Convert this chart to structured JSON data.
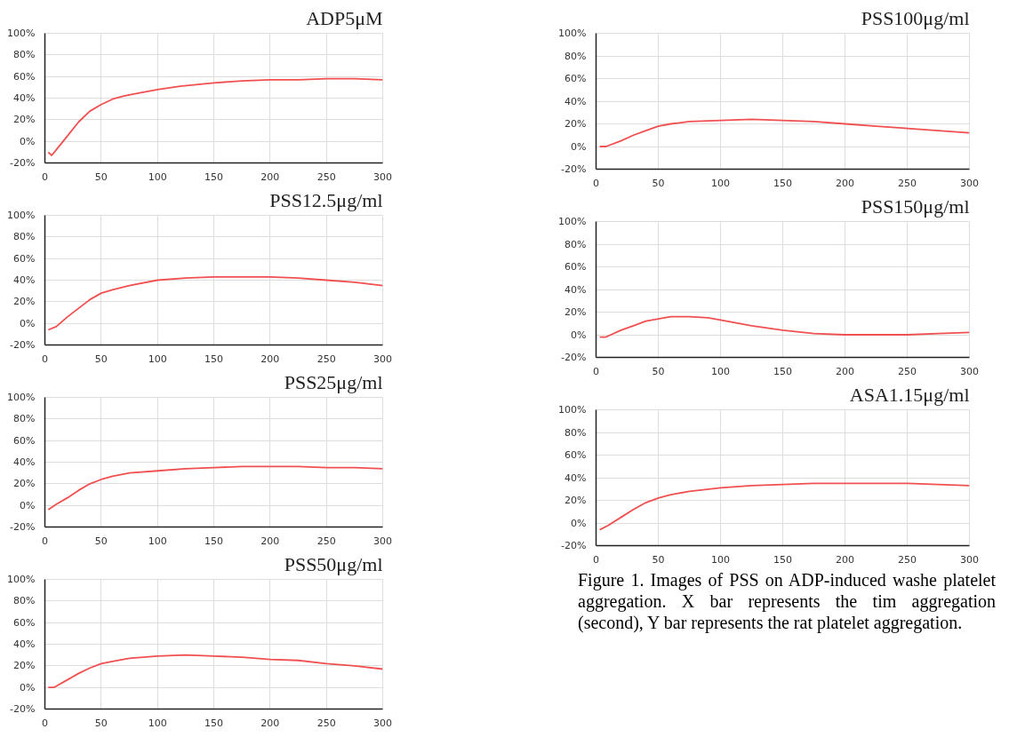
{
  "chart_data": [
    {
      "type": "line",
      "title": "ADP5μM",
      "x": [
        3,
        6,
        10,
        20,
        30,
        40,
        50,
        60,
        70,
        80,
        100,
        120,
        150,
        175,
        200,
        225,
        250,
        275,
        300
      ],
      "series": [
        {
          "color": "#f05050",
          "values": [
            -10,
            -13,
            -8,
            5,
            18,
            28,
            34,
            39,
            42,
            44,
            48,
            51,
            54,
            56,
            57,
            57,
            58,
            58,
            57
          ]
        }
      ],
      "xlim": [
        0,
        300
      ],
      "ylim": [
        -20,
        100
      ],
      "xticks": [
        0,
        50,
        100,
        150,
        200,
        250,
        300
      ],
      "yticks": [
        {
          "value": -20,
          "label": "-20%"
        },
        {
          "value": 0,
          "label": "0%"
        },
        {
          "value": 20,
          "label": "20%"
        },
        {
          "value": 40,
          "label": "40%"
        },
        {
          "value": 60,
          "label": "60%"
        },
        {
          "value": 80,
          "label": "80%"
        },
        {
          "value": 100,
          "label": "100%"
        }
      ],
      "grid": true
    },
    {
      "type": "line",
      "title": "PSS12.5μg/ml",
      "x": [
        3,
        10,
        20,
        30,
        40,
        50,
        60,
        75,
        100,
        125,
        150,
        175,
        200,
        225,
        250,
        275,
        300
      ],
      "series": [
        {
          "color": "#f05050",
          "values": [
            -6,
            -3,
            6,
            14,
            22,
            28,
            31,
            35,
            40,
            42,
            43,
            43,
            43,
            42,
            40,
            38,
            35
          ]
        }
      ],
      "xlim": [
        0,
        300
      ],
      "ylim": [
        -20,
        100
      ],
      "xticks": [
        0,
        50,
        100,
        150,
        200,
        250,
        300
      ],
      "yticks": [
        {
          "value": -20,
          "label": "-20%"
        },
        {
          "value": 0,
          "label": "0%"
        },
        {
          "value": 20,
          "label": "20%"
        },
        {
          "value": 40,
          "label": "40%"
        },
        {
          "value": 60,
          "label": "60%"
        },
        {
          "value": 80,
          "label": "80%"
        },
        {
          "value": 100,
          "label": "100%"
        }
      ],
      "grid": true
    },
    {
      "type": "line",
      "title": "PSS25μg/ml",
      "x": [
        3,
        10,
        20,
        30,
        40,
        50,
        60,
        75,
        100,
        125,
        150,
        175,
        200,
        225,
        250,
        275,
        300
      ],
      "series": [
        {
          "color": "#f05050",
          "values": [
            -4,
            1,
            7,
            14,
            20,
            24,
            27,
            30,
            32,
            34,
            35,
            36,
            36,
            36,
            35,
            35,
            34
          ]
        }
      ],
      "xlim": [
        0,
        300
      ],
      "ylim": [
        -20,
        100
      ],
      "xticks": [
        0,
        50,
        100,
        150,
        200,
        250,
        300
      ],
      "yticks": [
        {
          "value": -20,
          "label": "-20%"
        },
        {
          "value": 0,
          "label": "0%"
        },
        {
          "value": 20,
          "label": "20%"
        },
        {
          "value": 40,
          "label": "40%"
        },
        {
          "value": 60,
          "label": "60%"
        },
        {
          "value": 80,
          "label": "80%"
        },
        {
          "value": 100,
          "label": "100%"
        }
      ],
      "grid": true
    },
    {
      "type": "line",
      "title": "PSS50μg/ml",
      "x": [
        3,
        8,
        20,
        30,
        40,
        50,
        60,
        75,
        100,
        125,
        150,
        175,
        200,
        225,
        250,
        275,
        300
      ],
      "series": [
        {
          "color": "#f05050",
          "values": [
            0,
            0,
            7,
            13,
            18,
            22,
            24,
            27,
            29,
            30,
            29,
            28,
            26,
            25,
            22,
            20,
            17
          ]
        }
      ],
      "xlim": [
        0,
        300
      ],
      "ylim": [
        -20,
        100
      ],
      "xticks": [
        0,
        50,
        100,
        150,
        200,
        250,
        300
      ],
      "yticks": [
        {
          "value": -20,
          "label": "-20%"
        },
        {
          "value": 0,
          "label": "0%"
        },
        {
          "value": 20,
          "label": "20%"
        },
        {
          "value": 40,
          "label": "40%"
        },
        {
          "value": 60,
          "label": "60%"
        },
        {
          "value": 80,
          "label": "80%"
        },
        {
          "value": 100,
          "label": "100%"
        }
      ],
      "grid": true
    },
    {
      "type": "line",
      "title": "PSS100μg/ml",
      "x": [
        3,
        8,
        20,
        30,
        40,
        50,
        60,
        75,
        100,
        125,
        150,
        175,
        200,
        225,
        250,
        275,
        300
      ],
      "series": [
        {
          "color": "#f05050",
          "values": [
            0,
            0,
            5,
            10,
            14,
            18,
            20,
            22,
            23,
            24,
            23,
            22,
            20,
            18,
            16,
            14,
            12
          ]
        }
      ],
      "xlim": [
        0,
        300
      ],
      "ylim": [
        -20,
        100
      ],
      "xticks": [
        0,
        50,
        100,
        150,
        200,
        250,
        300
      ],
      "yticks": [
        {
          "value": -20,
          "label": "-20%"
        },
        {
          "value": 0,
          "label": "0%"
        },
        {
          "value": 20,
          "label": "20%"
        },
        {
          "value": 40,
          "label": "40%"
        },
        {
          "value": 60,
          "label": "60%"
        },
        {
          "value": 80,
          "label": "80%"
        },
        {
          "value": 100,
          "label": "100%"
        }
      ],
      "grid": true
    },
    {
      "type": "line",
      "title": "PSS150μg/ml",
      "x": [
        3,
        8,
        20,
        30,
        40,
        50,
        60,
        75,
        90,
        100,
        125,
        150,
        175,
        200,
        225,
        250,
        275,
        300
      ],
      "series": [
        {
          "color": "#f05050",
          "values": [
            -2,
            -2,
            4,
            8,
            12,
            14,
            16,
            16,
            15,
            13,
            8,
            4,
            1,
            0,
            0,
            0,
            1,
            2
          ]
        }
      ],
      "xlim": [
        0,
        300
      ],
      "ylim": [
        -20,
        100
      ],
      "xticks": [
        0,
        50,
        100,
        150,
        200,
        250,
        300
      ],
      "yticks": [
        {
          "value": -20,
          "label": "-20%"
        },
        {
          "value": 0,
          "label": "0%"
        },
        {
          "value": 20,
          "label": "20%"
        },
        {
          "value": 40,
          "label": "40%"
        },
        {
          "value": 60,
          "label": "60%"
        },
        {
          "value": 80,
          "label": "80%"
        },
        {
          "value": 100,
          "label": "100%"
        }
      ],
      "grid": true
    },
    {
      "type": "line",
      "title": "ASA1.15μg/ml",
      "x": [
        3,
        10,
        20,
        30,
        40,
        50,
        60,
        75,
        100,
        125,
        150,
        175,
        200,
        225,
        250,
        275,
        300
      ],
      "series": [
        {
          "color": "#f05050",
          "values": [
            -6,
            -2,
            5,
            12,
            18,
            22,
            25,
            28,
            31,
            33,
            34,
            35,
            35,
            35,
            35,
            34,
            33
          ]
        }
      ],
      "xlim": [
        0,
        300
      ],
      "ylim": [
        -20,
        100
      ],
      "xticks": [
        0,
        50,
        100,
        150,
        200,
        250,
        300
      ],
      "yticks": [
        {
          "value": -20,
          "label": "-20%"
        },
        {
          "value": 0,
          "label": "0%"
        },
        {
          "value": 20,
          "label": "20%"
        },
        {
          "value": 40,
          "label": "40%"
        },
        {
          "value": 60,
          "label": "60%"
        },
        {
          "value": 80,
          "label": "80%"
        },
        {
          "value": 100,
          "label": "100%"
        }
      ],
      "grid": true,
      "annotations": [
        "Figure 1. Images of PSS on ADP-induced washe platelet aggregation. X bar represents the tim aggregation (second), Y bar represents the rat platelet aggregation."
      ]
    }
  ]
}
